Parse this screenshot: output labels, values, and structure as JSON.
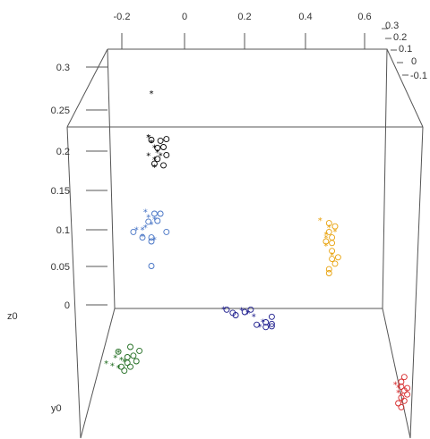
{
  "chart_data": {
    "type": "scatter",
    "projection": "3d-perspective",
    "title": "",
    "x_axis": {
      "label": "",
      "ticks": [
        "-0.2",
        "0",
        "0.2",
        "0.4",
        "0.6"
      ]
    },
    "y_axis": {
      "label": "y0",
      "ticks": [
        "0.3",
        "0.2",
        "0.1",
        "0",
        "-0.1"
      ]
    },
    "z_axis": {
      "label": "z0",
      "ticks": [
        "0.3",
        "0.25",
        "0.2",
        "0.15",
        "0.1",
        "0.05",
        "0"
      ]
    },
    "grid": false,
    "legend": "none",
    "markers": {
      "circle": "o",
      "star": "*"
    },
    "series": [
      {
        "color": "#000000",
        "points": [
          {
            "m": "star",
            "x": -0.12,
            "z": 0.212
          },
          {
            "m": "star",
            "x": -0.12,
            "z": 0.212
          },
          {
            "m": "star",
            "x": -0.11,
            "z": 0.205
          },
          {
            "m": "star",
            "x": -0.1,
            "z": 0.199
          },
          {
            "m": "star",
            "x": -0.09,
            "z": 0.193
          },
          {
            "m": "star",
            "x": -0.08,
            "z": 0.189
          },
          {
            "m": "star",
            "x": -0.1,
            "z": 0.184
          },
          {
            "m": "star",
            "x": -0.12,
            "z": 0.189
          },
          {
            "m": "star",
            "x": -0.1,
            "z": 0.174
          },
          {
            "m": "circle",
            "x": -0.11,
            "z": 0.208
          },
          {
            "m": "circle",
            "x": -0.08,
            "z": 0.207
          },
          {
            "m": "circle",
            "x": -0.06,
            "z": 0.209
          },
          {
            "m": "circle",
            "x": -0.07,
            "z": 0.199
          },
          {
            "m": "circle",
            "x": -0.09,
            "z": 0.198
          },
          {
            "m": "circle",
            "x": -0.06,
            "z": 0.189
          },
          {
            "m": "circle",
            "x": -0.09,
            "z": 0.184
          },
          {
            "m": "circle",
            "x": -0.1,
            "z": 0.178
          },
          {
            "m": "circle",
            "x": -0.07,
            "z": 0.176
          }
        ]
      },
      {
        "color": "#4472c4",
        "points": [
          {
            "m": "star",
            "x": -0.13,
            "z": 0.118
          },
          {
            "m": "star",
            "x": -0.12,
            "z": 0.111
          },
          {
            "m": "star",
            "x": -0.1,
            "z": 0.108
          },
          {
            "m": "star",
            "x": -0.11,
            "z": 0.102
          },
          {
            "m": "star",
            "x": -0.13,
            "z": 0.098
          },
          {
            "m": "star",
            "x": -0.16,
            "z": 0.095
          },
          {
            "m": "star",
            "x": -0.14,
            "z": 0.095
          },
          {
            "m": "star",
            "x": -0.14,
            "z": 0.087
          },
          {
            "m": "star",
            "x": -0.1,
            "z": 0.083
          },
          {
            "m": "circle",
            "x": -0.1,
            "z": 0.115
          },
          {
            "m": "circle",
            "x": -0.08,
            "z": 0.115
          },
          {
            "m": "circle",
            "x": -0.12,
            "z": 0.105
          },
          {
            "m": "circle",
            "x": -0.09,
            "z": 0.106
          },
          {
            "m": "circle",
            "x": -0.17,
            "z": 0.092
          },
          {
            "m": "circle",
            "x": -0.06,
            "z": 0.092
          },
          {
            "m": "circle",
            "x": -0.14,
            "z": 0.085
          },
          {
            "m": "circle",
            "x": -0.11,
            "z": 0.085
          },
          {
            "m": "circle",
            "x": -0.11,
            "z": 0.08
          },
          {
            "m": "circle",
            "x": -0.11,
            "z": 0.049
          }
        ]
      },
      {
        "color": "#e8a10a",
        "points": [
          {
            "m": "star",
            "x": 0.45,
            "z": 0.107
          },
          {
            "m": "star",
            "x": 0.48,
            "z": 0.098
          },
          {
            "m": "star",
            "x": 0.5,
            "z": 0.093
          },
          {
            "m": "star",
            "x": 0.47,
            "z": 0.089
          },
          {
            "m": "star",
            "x": 0.47,
            "z": 0.085
          },
          {
            "m": "star",
            "x": 0.47,
            "z": 0.075
          },
          {
            "m": "star",
            "x": 0.49,
            "z": 0.063
          },
          {
            "m": "circle",
            "x": 0.48,
            "z": 0.103
          },
          {
            "m": "circle",
            "x": 0.5,
            "z": 0.099
          },
          {
            "m": "circle",
            "x": 0.48,
            "z": 0.092
          },
          {
            "m": "circle",
            "x": 0.49,
            "z": 0.085
          },
          {
            "m": "circle",
            "x": 0.47,
            "z": 0.08
          },
          {
            "m": "circle",
            "x": 0.49,
            "z": 0.078
          },
          {
            "m": "circle",
            "x": 0.49,
            "z": 0.068
          },
          {
            "m": "circle",
            "x": 0.51,
            "z": 0.06
          },
          {
            "m": "circle",
            "x": 0.49,
            "z": 0.058
          },
          {
            "m": "circle",
            "x": 0.5,
            "z": 0.052
          },
          {
            "m": "circle",
            "x": 0.48,
            "z": 0.045
          },
          {
            "m": "circle",
            "x": 0.48,
            "z": 0.04
          }
        ]
      },
      {
        "color": "#1a1a8c",
        "points": [
          {
            "m": "star",
            "x": 0.13,
            "z": -0.005
          },
          {
            "m": "star",
            "x": 0.19,
            "z": -0.006
          },
          {
            "m": "star",
            "x": 0.21,
            "z": -0.01
          },
          {
            "m": "star",
            "x": 0.23,
            "z": -0.014
          },
          {
            "m": "star",
            "x": 0.26,
            "z": -0.021
          },
          {
            "m": "star",
            "x": 0.25,
            "z": -0.027
          },
          {
            "m": "circle",
            "x": 0.14,
            "z": -0.006
          },
          {
            "m": "circle",
            "x": 0.16,
            "z": -0.01
          },
          {
            "m": "circle",
            "x": 0.2,
            "z": -0.009
          },
          {
            "m": "circle",
            "x": 0.22,
            "z": -0.006
          },
          {
            "m": "circle",
            "x": 0.17,
            "z": -0.013
          },
          {
            "m": "circle",
            "x": 0.29,
            "z": -0.015
          },
          {
            "m": "circle",
            "x": 0.27,
            "z": -0.022
          },
          {
            "m": "circle",
            "x": 0.29,
            "z": -0.024
          },
          {
            "m": "circle",
            "x": 0.24,
            "z": -0.025
          },
          {
            "m": "circle",
            "x": 0.27,
            "z": -0.028
          },
          {
            "m": "circle",
            "x": 0.29,
            "z": -0.027
          }
        ]
      },
      {
        "color": "#1e6b1e",
        "points": [
          {
            "m": "star",
            "x": -0.22,
            "z": -0.06
          },
          {
            "m": "star",
            "x": -0.23,
            "z": -0.066
          },
          {
            "m": "star",
            "x": -0.2,
            "z": -0.071
          },
          {
            "m": "star",
            "x": -0.21,
            "z": -0.069
          },
          {
            "m": "star",
            "x": -0.24,
            "z": -0.076
          },
          {
            "m": "star",
            "x": -0.26,
            "z": -0.073
          },
          {
            "m": "star",
            "x": -0.22,
            "z": -0.079
          },
          {
            "m": "circle",
            "x": -0.18,
            "z": -0.053
          },
          {
            "m": "circle",
            "x": -0.22,
            "z": -0.059
          },
          {
            "m": "circle",
            "x": -0.15,
            "z": -0.058
          },
          {
            "m": "circle",
            "x": -0.17,
            "z": -0.064
          },
          {
            "m": "circle",
            "x": -0.19,
            "z": -0.066
          },
          {
            "m": "circle",
            "x": -0.16,
            "z": -0.071
          },
          {
            "m": "circle",
            "x": -0.19,
            "z": -0.073
          },
          {
            "m": "circle",
            "x": -0.21,
            "z": -0.078
          },
          {
            "m": "circle",
            "x": -0.18,
            "z": -0.078
          },
          {
            "m": "circle",
            "x": -0.2,
            "z": -0.083
          }
        ]
      },
      {
        "color": "#d62728",
        "points": [
          {
            "m": "star",
            "x": 0.7,
            "z": -0.1
          },
          {
            "m": "star",
            "x": 0.71,
            "z": -0.104
          },
          {
            "m": "star",
            "x": 0.71,
            "z": -0.11
          },
          {
            "m": "star",
            "x": 0.72,
            "z": -0.114
          },
          {
            "m": "circle",
            "x": 0.73,
            "z": -0.091
          },
          {
            "m": "circle",
            "x": 0.72,
            "z": -0.097
          },
          {
            "m": "circle",
            "x": 0.72,
            "z": -0.103
          },
          {
            "m": "circle",
            "x": 0.74,
            "z": -0.105
          },
          {
            "m": "circle",
            "x": 0.73,
            "z": -0.108
          },
          {
            "m": "circle",
            "x": 0.74,
            "z": -0.113
          },
          {
            "m": "circle",
            "x": 0.72,
            "z": -0.117
          },
          {
            "m": "circle",
            "x": 0.73,
            "z": -0.121
          },
          {
            "m": "circle",
            "x": 0.71,
            "z": -0.124
          },
          {
            "m": "circle",
            "x": 0.72,
            "z": -0.129
          }
        ]
      },
      {
        "color": "#000000",
        "points": [
          {
            "m": "star",
            "x": -0.11,
            "z": 0.267
          }
        ]
      }
    ]
  }
}
